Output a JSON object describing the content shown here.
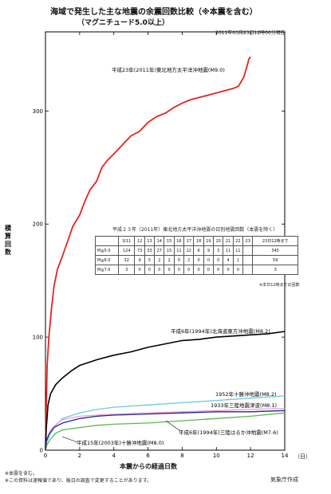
{
  "header": {
    "title": "海域で発生した主な地震の余震回数比較（※本震を含む）",
    "subtitle": "（マグニチュード5.0以上）",
    "timestamp": "2011年03月23日12時00分現在"
  },
  "axes": {
    "ylabel": "積算回数",
    "xlabel": "本震からの経過日数",
    "xunit": "（日）"
  },
  "table": {
    "title": "平成２３年（2011年）東北地方太平洋沖地震の日別地震回数（本震を除く）",
    "headers": [
      "",
      "3/11",
      "12",
      "13",
      "14",
      "15",
      "16",
      "17",
      "18",
      "19",
      "20",
      "21",
      "22",
      "23",
      "23日12時まで"
    ],
    "rows": [
      [
        "M≧5.0",
        "124",
        "73",
        "33",
        "27",
        "15",
        "11",
        "12",
        "6",
        "9",
        "3",
        "11",
        "11",
        "",
        "345"
      ],
      [
        "M≧6.0",
        "32",
        "9",
        "5",
        "2",
        "2",
        "0",
        "2",
        "0",
        "0",
        "0",
        "4",
        "1",
        "",
        "59"
      ],
      [
        "M≧7.0",
        "3",
        "0",
        "0",
        "0",
        "0",
        "0",
        "0",
        "0",
        "0",
        "0",
        "0",
        "0",
        "",
        "3"
      ]
    ],
    "note": "※本日12時までの回数"
  },
  "footer": {
    "note1": "※本震を含む。",
    "note2": "※この資料は速報値であり、後日の調査で変更することがあります。",
    "credit": "気象庁作成"
  },
  "chart_data": {
    "type": "line",
    "xlabel": "本震からの経過日数",
    "ylabel": "積算回数",
    "xlim": [
      0,
      14
    ],
    "ylim": [
      0,
      370
    ],
    "xticks": [
      0,
      2,
      4,
      6,
      8,
      10,
      12,
      14
    ],
    "yticks": [
      0,
      100,
      200,
      300
    ],
    "grid": false,
    "series": [
      {
        "name": "平成23年(2011年)東北地方太平洋沖地震(M9.0)",
        "color": "#e8231c",
        "points": [
          [
            0,
            0
          ],
          [
            0.05,
            40
          ],
          [
            0.1,
            75
          ],
          [
            0.2,
            100
          ],
          [
            0.35,
            125
          ],
          [
            0.5,
            145
          ],
          [
            0.7,
            160
          ],
          [
            1.0,
            172
          ],
          [
            1.3,
            185
          ],
          [
            1.6,
            198
          ],
          [
            2.0,
            208
          ],
          [
            2.3,
            220
          ],
          [
            2.6,
            230
          ],
          [
            3.0,
            238
          ],
          [
            3.3,
            250
          ],
          [
            3.6,
            256
          ],
          [
            4.0,
            262
          ],
          [
            4.5,
            270
          ],
          [
            5.0,
            278
          ],
          [
            5.5,
            282
          ],
          [
            6.0,
            290
          ],
          [
            6.5,
            295
          ],
          [
            7.0,
            298
          ],
          [
            7.5,
            303
          ],
          [
            8.0,
            307
          ],
          [
            8.5,
            310
          ],
          [
            9.0,
            312
          ],
          [
            9.5,
            314
          ],
          [
            10.0,
            316
          ],
          [
            10.5,
            318
          ],
          [
            11.0,
            320
          ],
          [
            11.3,
            322
          ],
          [
            11.6,
            330
          ],
          [
            11.8,
            340
          ],
          [
            11.9,
            346
          ],
          [
            12.0,
            348
          ]
        ]
      },
      {
        "name": "平成6年(1994年)北海道東方沖地震(M8.2)",
        "color": "#000000",
        "points": [
          [
            0,
            0
          ],
          [
            0.05,
            20
          ],
          [
            0.15,
            40
          ],
          [
            0.3,
            50
          ],
          [
            0.6,
            58
          ],
          [
            1.0,
            64
          ],
          [
            1.5,
            70
          ],
          [
            2.0,
            75
          ],
          [
            3.0,
            80
          ],
          [
            4.0,
            84
          ],
          [
            5.0,
            87
          ],
          [
            6.0,
            91
          ],
          [
            7.0,
            94
          ],
          [
            8.0,
            97
          ],
          [
            9.0,
            98
          ],
          [
            10.0,
            100
          ],
          [
            11.0,
            101
          ],
          [
            12.0,
            102
          ],
          [
            13.0,
            103
          ],
          [
            14.0,
            105
          ]
        ]
      },
      {
        "name": "1952年十勝沖地震(M8.2)",
        "color": "#6cc8e0",
        "points": [
          [
            0,
            0
          ],
          [
            0.1,
            8
          ],
          [
            0.3,
            15
          ],
          [
            0.6,
            22
          ],
          [
            1.0,
            28
          ],
          [
            2.0,
            33
          ],
          [
            3.0,
            36
          ],
          [
            4.0,
            38
          ],
          [
            6.0,
            40
          ],
          [
            8.0,
            42
          ],
          [
            10.0,
            44
          ],
          [
            12.0,
            46
          ],
          [
            14.0,
            48
          ]
        ]
      },
      {
        "name": "1933年三陸地震津波(M8.1)",
        "color": "#f09adc",
        "points": [
          [
            0,
            0
          ],
          [
            0.1,
            10
          ],
          [
            0.3,
            18
          ],
          [
            0.7,
            24
          ],
          [
            1.0,
            27
          ],
          [
            2.0,
            30
          ],
          [
            3.0,
            31
          ],
          [
            4.0,
            32
          ],
          [
            6.0,
            33
          ],
          [
            8.0,
            34
          ],
          [
            10.0,
            35
          ],
          [
            12.0,
            36
          ],
          [
            14.0,
            37
          ]
        ]
      },
      {
        "name": "平成6年(1994年)三陸はるか沖地震(M7.6)",
        "color": "#5ab84a",
        "points": [
          [
            0,
            0
          ],
          [
            0.1,
            5
          ],
          [
            0.3,
            10
          ],
          [
            0.6,
            15
          ],
          [
            1.0,
            18
          ],
          [
            2.0,
            20
          ],
          [
            3.0,
            22
          ],
          [
            4.0,
            23
          ],
          [
            6.0,
            24
          ],
          [
            8.0,
            26
          ],
          [
            10.0,
            28
          ],
          [
            12.0,
            30
          ],
          [
            14.0,
            33
          ]
        ]
      },
      {
        "name": "平成15年(2003年)十勝沖地震(M8.0)",
        "color": "#1c2a8a",
        "points": [
          [
            0,
            0
          ],
          [
            0.05,
            8
          ],
          [
            0.2,
            14
          ],
          [
            0.5,
            20
          ],
          [
            1.0,
            24
          ],
          [
            2.0,
            28
          ],
          [
            3.0,
            30
          ],
          [
            4.0,
            31
          ],
          [
            6.0,
            32
          ],
          [
            8.0,
            33
          ],
          [
            10.0,
            34
          ],
          [
            12.0,
            34
          ],
          [
            14.0,
            35
          ]
        ]
      }
    ]
  }
}
